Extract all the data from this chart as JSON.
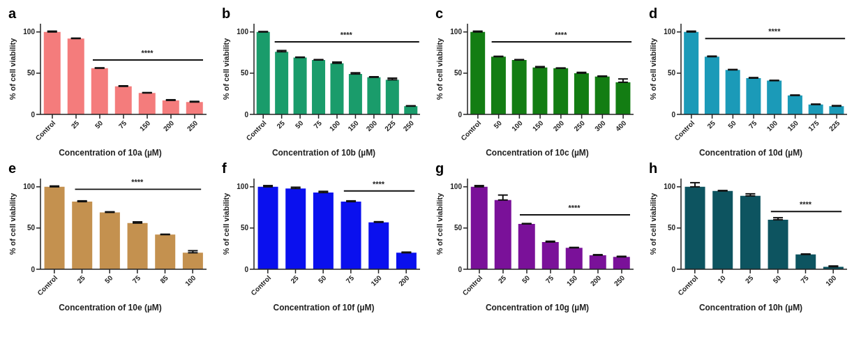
{
  "chart_data": [
    {
      "type": "bar",
      "title": "a",
      "xlabel": "Concentration of 10a (µM)",
      "ylabel": "% of cell viability",
      "categories": [
        "Control",
        "25",
        "50",
        "75",
        "150",
        "200",
        "250"
      ],
      "values": [
        100,
        92,
        56,
        34,
        26,
        17,
        15
      ],
      "errors": [
        [
          100,
          101
        ],
        [
          92,
          92.5
        ],
        [
          56,
          56.5
        ],
        [
          34,
          34.7
        ],
        [
          26,
          26.5
        ],
        [
          17,
          17.8
        ],
        [
          15,
          15.8
        ]
      ],
      "color": "#f47c7c",
      "ylim": [
        0,
        110
      ],
      "yticks": [
        0,
        50,
        100
      ],
      "ref_lines": [
        {
          "axis": "y",
          "value": 66,
          "label": "****"
        }
      ]
    },
    {
      "type": "bar",
      "title": "b",
      "xlabel": "Concentration of 10b (µM)",
      "ylabel": "% of cell viability",
      "categories": [
        "Control",
        "25",
        "50",
        "75",
        "100",
        "150",
        "200",
        "225",
        "250"
      ],
      "values": [
        100,
        76,
        69,
        66,
        62,
        49,
        45,
        42,
        10
      ],
      "errors": [
        [
          100,
          100.5
        ],
        [
          76,
          77.5
        ],
        [
          69,
          69.5
        ],
        [
          66,
          66.5
        ],
        [
          62,
          63.5
        ],
        [
          49,
          50.5
        ],
        [
          45,
          45.7
        ],
        [
          42,
          44
        ],
        [
          10,
          10.5
        ]
      ],
      "color": "#1a9c6b",
      "ylim": [
        0,
        110
      ],
      "yticks": [
        0,
        50,
        100
      ],
      "ref_lines": [
        {
          "axis": "y",
          "value": 88,
          "label": "****"
        }
      ]
    },
    {
      "type": "bar",
      "title": "c",
      "xlabel": "Concentration of 10c (µM)",
      "ylabel": "% of cell viability",
      "categories": [
        "Control",
        "50",
        "100",
        "150",
        "200",
        "250",
        "300",
        "400"
      ],
      "values": [
        100,
        70,
        66,
        57,
        56,
        50,
        46,
        39
      ],
      "errors": [
        [
          100,
          101
        ],
        [
          70,
          70.5
        ],
        [
          66,
          66.5
        ],
        [
          57,
          58
        ],
        [
          56,
          56.3
        ],
        [
          50,
          51
        ],
        [
          46,
          46.5
        ],
        [
          39,
          43
        ]
      ],
      "color": "#137d13",
      "ylim": [
        0,
        110
      ],
      "yticks": [
        0,
        50,
        100
      ],
      "ref_lines": [
        {
          "axis": "y",
          "value": 88,
          "label": "****"
        }
      ]
    },
    {
      "type": "bar",
      "title": "d",
      "xlabel": "Concentration of 10d (µM)",
      "ylabel": "% of cell viability",
      "categories": [
        "Control",
        "25",
        "50",
        "75",
        "100",
        "150",
        "175",
        "225"
      ],
      "values": [
        100,
        70,
        54,
        44,
        41,
        23,
        12,
        10
      ],
      "errors": [
        [
          100,
          101
        ],
        [
          70,
          70.7
        ],
        [
          54,
          54.5
        ],
        [
          44,
          44.7
        ],
        [
          41,
          41.3
        ],
        [
          23,
          23.5
        ],
        [
          12,
          12.5
        ],
        [
          10,
          10.7
        ]
      ],
      "color": "#1b9ab8",
      "ylim": [
        0,
        110
      ],
      "yticks": [
        0,
        50,
        100
      ],
      "ref_lines": [
        {
          "axis": "y",
          "value": 92,
          "label": "****"
        }
      ]
    },
    {
      "type": "bar",
      "title": "e",
      "xlabel": "Concentration of 10e (µM)",
      "ylabel": "% of cell viability",
      "categories": [
        "Control",
        "25",
        "50",
        "75",
        "85",
        "100"
      ],
      "values": [
        100,
        82,
        69,
        56,
        42,
        20
      ],
      "errors": [
        [
          100,
          101
        ],
        [
          82,
          83
        ],
        [
          69,
          69.7
        ],
        [
          56,
          57.5
        ],
        [
          42,
          42.5
        ],
        [
          20,
          22.5
        ]
      ],
      "color": "#c4914f",
      "ylim": [
        0,
        110
      ],
      "yticks": [
        0,
        50,
        100
      ],
      "ref_lines": [
        {
          "axis": "y",
          "value": 97,
          "label": "****"
        }
      ]
    },
    {
      "type": "bar",
      "title": "f",
      "xlabel": "Concentration of 10f (µM)",
      "ylabel": "% of cell viability",
      "categories": [
        "Control",
        "25",
        "50",
        "75",
        "150",
        "200"
      ],
      "values": [
        100,
        98,
        93,
        82,
        57,
        20
      ],
      "errors": [
        [
          100,
          101.5
        ],
        [
          98,
          99.5
        ],
        [
          93,
          94.5
        ],
        [
          82,
          83
        ],
        [
          57,
          57.7
        ],
        [
          20,
          20.8
        ]
      ],
      "color": "#0a10ee",
      "ylim": [
        0,
        110
      ],
      "yticks": [
        0,
        50,
        100
      ],
      "ref_lines": [
        {
          "axis": "y",
          "value": 95,
          "label": "****"
        }
      ]
    },
    {
      "type": "bar",
      "title": "g",
      "xlabel": "Concentration of 10g (µM)",
      "ylabel": "% of cell viability",
      "categories": [
        "Control",
        "25",
        "50",
        "75",
        "150",
        "200",
        "250"
      ],
      "values": [
        100,
        84,
        55,
        33,
        26,
        17,
        15
      ],
      "errors": [
        [
          100,
          101.5
        ],
        [
          84,
          90
        ],
        [
          55,
          55.5
        ],
        [
          33,
          34
        ],
        [
          26,
          26.5
        ],
        [
          17,
          17.7
        ],
        [
          15,
          15.7
        ]
      ],
      "color": "#7a1199",
      "ylim": [
        0,
        110
      ],
      "yticks": [
        0,
        50,
        100
      ],
      "ref_lines": [
        {
          "axis": "y",
          "value": 66,
          "label": "****"
        }
      ]
    },
    {
      "type": "bar",
      "title": "h",
      "xlabel": "Concentration of 10h (µM)",
      "ylabel": "% of cell viability",
      "categories": [
        "Control",
        "10",
        "25",
        "50",
        "75",
        "100"
      ],
      "values": [
        100,
        95,
        89,
        60,
        18,
        3
      ],
      "errors": [
        [
          100,
          105
        ],
        [
          95,
          95.5
        ],
        [
          89,
          91.5
        ],
        [
          60,
          62.5
        ],
        [
          18,
          18.5
        ],
        [
          3,
          4
        ]
      ],
      "color": "#0d5460",
      "ylim": [
        0,
        110
      ],
      "yticks": [
        0,
        50,
        100
      ],
      "ref_lines": [
        {
          "axis": "y",
          "value": 70,
          "label": "****"
        }
      ]
    }
  ]
}
